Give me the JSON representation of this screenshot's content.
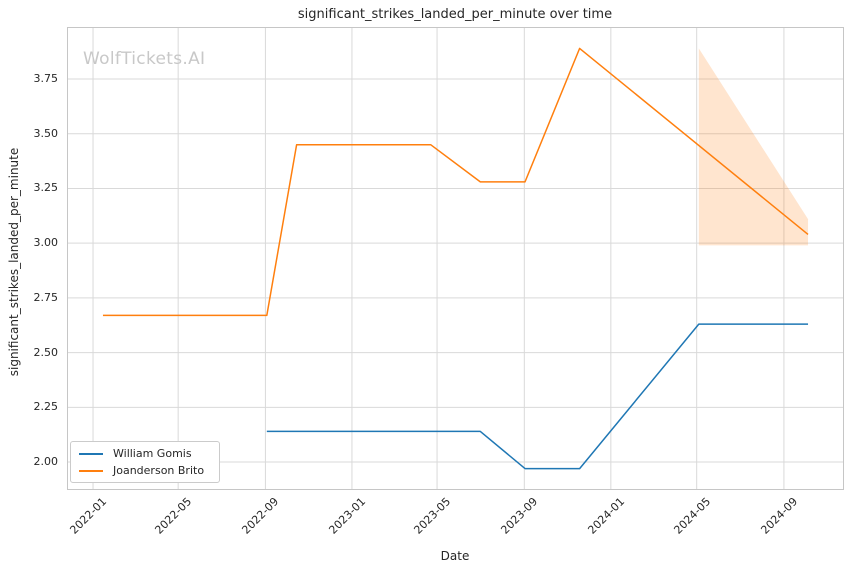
{
  "chart_data": {
    "type": "line",
    "title": "significant_strikes_landed_per_minute over time",
    "xlabel": "Date",
    "ylabel": "significant_strikes_landed_per_minute",
    "watermark": "WolfTickets.AI",
    "grid": true,
    "legend_position": "lower left",
    "xlim": [
      "2021-11-26",
      "2024-11-24"
    ],
    "ylim": [
      1.8745,
      3.9855
    ],
    "x_ticks": [
      {
        "date": "2022-01-01",
        "label": "2022-01"
      },
      {
        "date": "2022-05-01",
        "label": "2022-05"
      },
      {
        "date": "2022-09-01",
        "label": "2022-09"
      },
      {
        "date": "2023-01-01",
        "label": "2023-01"
      },
      {
        "date": "2023-05-01",
        "label": "2023-05"
      },
      {
        "date": "2023-09-01",
        "label": "2023-09"
      },
      {
        "date": "2024-01-01",
        "label": "2024-01"
      },
      {
        "date": "2024-05-01",
        "label": "2024-05"
      },
      {
        "date": "2024-09-01",
        "label": "2024-09"
      }
    ],
    "y_ticks": [
      {
        "value": 2.0,
        "label": "2.00"
      },
      {
        "value": 2.25,
        "label": "2.25"
      },
      {
        "value": 2.5,
        "label": "2.50"
      },
      {
        "value": 2.75,
        "label": "2.75"
      },
      {
        "value": 3.0,
        "label": "3.00"
      },
      {
        "value": 3.25,
        "label": "3.25"
      },
      {
        "value": 3.5,
        "label": "3.50"
      },
      {
        "value": 3.75,
        "label": "3.75"
      }
    ],
    "series": [
      {
        "name": "William Gomis",
        "color": "#1f77b4",
        "points": [
          [
            "2022-09-03",
            2.14
          ],
          [
            "2023-07-01",
            2.14
          ],
          [
            "2023-09-02",
            1.97
          ],
          [
            "2023-11-18",
            1.97
          ],
          [
            "2024-05-04",
            2.63
          ],
          [
            "2024-10-05",
            2.63
          ]
        ]
      },
      {
        "name": "Joanderson Brito",
        "color": "#ff7f0e",
        "points": [
          [
            "2022-01-15",
            2.67
          ],
          [
            "2022-09-03",
            2.67
          ],
          [
            "2022-10-15",
            3.45
          ],
          [
            "2023-04-22",
            3.45
          ],
          [
            "2023-07-01",
            3.28
          ],
          [
            "2023-09-02",
            3.28
          ],
          [
            "2023-11-18",
            3.89
          ],
          [
            "2024-10-05",
            3.04
          ]
        ]
      }
    ],
    "uncertainty_band": {
      "series": "Joanderson Brito",
      "color": "rgba(255, 127, 14, 0.2)",
      "upper": [
        [
          "2024-05-04",
          3.89
        ],
        [
          "2024-10-05",
          3.11
        ]
      ],
      "lower": [
        [
          "2024-05-04",
          2.99
        ],
        [
          "2024-10-05",
          2.99
        ]
      ]
    }
  }
}
